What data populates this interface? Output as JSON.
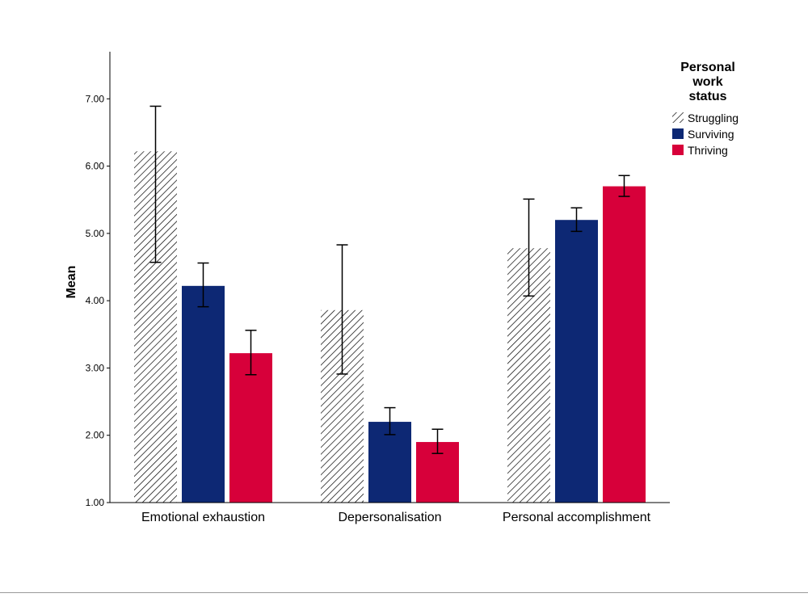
{
  "chart_data": {
    "type": "bar",
    "categories": [
      "Emotional exhaustion",
      "Depersonalisation",
      "Personal accomplishment"
    ],
    "series": [
      {
        "name": "Struggling",
        "values": [
          6.22,
          3.86,
          4.78
        ],
        "error_low": [
          4.57,
          2.91,
          4.07
        ],
        "error_high": [
          6.89,
          4.83,
          5.51
        ],
        "color": "#ffffff",
        "pattern": "diagonal-hatch"
      },
      {
        "name": "Surviving",
        "values": [
          4.22,
          2.2,
          5.2
        ],
        "error_low": [
          3.91,
          2.01,
          5.03
        ],
        "error_high": [
          4.56,
          2.41,
          5.38
        ],
        "color": "#0d2874"
      },
      {
        "name": "Thriving",
        "values": [
          3.22,
          1.9,
          5.7
        ],
        "error_low": [
          2.9,
          1.73,
          5.55
        ],
        "error_high": [
          3.56,
          2.09,
          5.86
        ],
        "color": "#d7003a"
      }
    ],
    "ylabel": "Mean",
    "xlabel": "",
    "ylim": [
      1.0,
      7.7
    ],
    "yticks": [
      "1.00",
      "2.00",
      "3.00",
      "4.00",
      "5.00",
      "6.00",
      "7.00"
    ],
    "legend": {
      "title_lines": [
        "Personal",
        "work",
        "status"
      ],
      "position": "top-right"
    },
    "grid": false
  }
}
